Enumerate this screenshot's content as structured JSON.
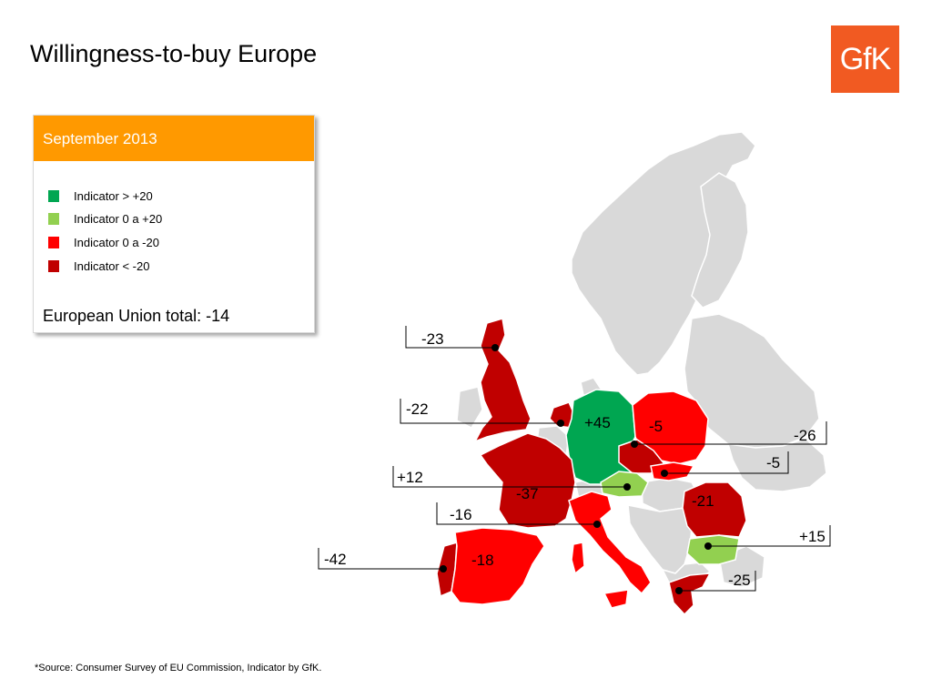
{
  "title": "Willingness-to-buy Europe",
  "logo": {
    "text": "GfK",
    "color": "#f15a22"
  },
  "legend": {
    "period": "September 2013",
    "items": [
      {
        "label": "Indicator > +20",
        "color": "#00a651"
      },
      {
        "label": "Indicator 0 a +20",
        "color": "#92d050"
      },
      {
        "label": "Indicator 0 a -20",
        "color": "#ff0000"
      },
      {
        "label": "Indicator < -20",
        "color": "#c00000"
      }
    ],
    "eu_total": "European Union total:  -14"
  },
  "countries": [
    {
      "name": "United Kingdom",
      "value": "-23",
      "color": "#c00000"
    },
    {
      "name": "Netherlands",
      "value": "-22",
      "color": "#c00000"
    },
    {
      "name": "Germany",
      "value": "+45",
      "color": "#00a651"
    },
    {
      "name": "Poland",
      "value": "-5",
      "color": "#ff0000"
    },
    {
      "name": "Czech Republic",
      "value": "-26",
      "color": "#c00000"
    },
    {
      "name": "Slovakia",
      "value": "-5",
      "color": "#ff0000"
    },
    {
      "name": "Austria",
      "value": "+12",
      "color": "#92d050"
    },
    {
      "name": "France",
      "value": "-37",
      "color": "#c00000"
    },
    {
      "name": "Italy",
      "value": "-16",
      "color": "#ff0000"
    },
    {
      "name": "Romania",
      "value": "-21",
      "color": "#c00000"
    },
    {
      "name": "Bulgaria",
      "value": "+15",
      "color": "#92d050"
    },
    {
      "name": "Portugal",
      "value": "-42",
      "color": "#c00000"
    },
    {
      "name": "Spain",
      "value": "-18",
      "color": "#ff0000"
    },
    {
      "name": "Greece",
      "value": "-25",
      "color": "#c00000"
    }
  ],
  "source": "*Source: Consumer Survey of EU Commission, Indicator by GfK."
}
